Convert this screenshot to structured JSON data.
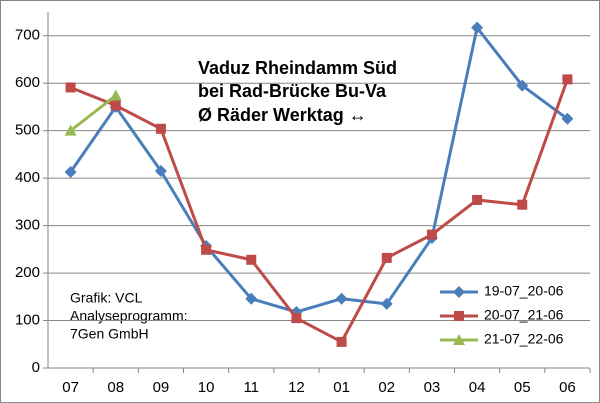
{
  "chart_data": {
    "type": "line",
    "title": [
      "Vaduz Rheindamm Süd",
      "bei Rad-Brücke Bu-Va",
      "Ø Räder Werktag ↔"
    ],
    "annotation": [
      "Grafik: VCL",
      "Analyseprogramm:",
      "7Gen GmbH"
    ],
    "categories": [
      "07",
      "08",
      "09",
      "10",
      "11",
      "12",
      "01",
      "02",
      "03",
      "04",
      "05",
      "06"
    ],
    "series": [
      {
        "name": "19-07_20-06",
        "color": "#4a7ebb",
        "marker": "diamond",
        "values": [
          413,
          550,
          415,
          257,
          146,
          118,
          146,
          135,
          274,
          717,
          595,
          525
        ]
      },
      {
        "name": "20-07_21-06",
        "color": "#be4b48",
        "marker": "square",
        "values": [
          591,
          553,
          504,
          249,
          228,
          105,
          55,
          232,
          281,
          354,
          344,
          608
        ]
      },
      {
        "name": "21-07_22-06",
        "color": "#98b954",
        "marker": "triangle",
        "values": [
          500,
          574,
          null,
          null,
          null,
          null,
          null,
          null,
          null,
          null,
          null,
          null
        ]
      }
    ],
    "ylim": [
      0,
      750
    ],
    "yticks": [
      0,
      100,
      200,
      300,
      400,
      500,
      600,
      700
    ],
    "grid": true,
    "legend": "lower right"
  }
}
